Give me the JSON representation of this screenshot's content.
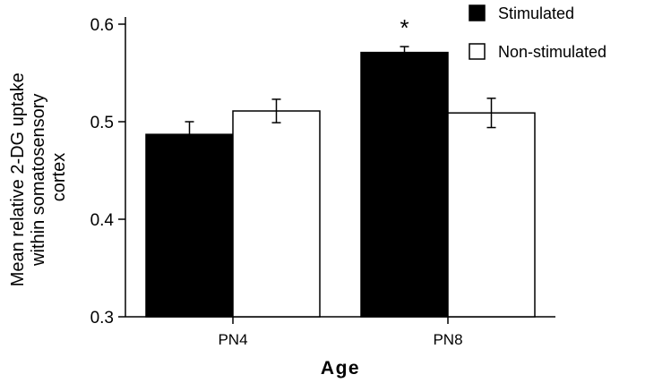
{
  "chart_data": {
    "type": "bar",
    "xlabel": "Age",
    "ylabel_lines": [
      "Mean relative 2-DG uptake",
      "within  somatosensory",
      "cortex"
    ],
    "categories": [
      "PN4",
      "PN8"
    ],
    "ylim": [
      0.3,
      0.6
    ],
    "yticks": [
      "0.3",
      "0.4",
      "0.5",
      "0.6"
    ],
    "legend_position": "top-right",
    "grid": false,
    "series": [
      {
        "name": "Stimulated",
        "fill": "#000000",
        "values": [
          0.487,
          0.571
        ],
        "errors": [
          0.013,
          0.006
        ]
      },
      {
        "name": "Non-stimulated",
        "fill": "#ffffff",
        "values": [
          0.511,
          0.509
        ],
        "errors": [
          0.012,
          0.015
        ]
      }
    ],
    "annotations": [
      {
        "text": "*",
        "category": "PN8",
        "series": "Stimulated"
      }
    ]
  }
}
